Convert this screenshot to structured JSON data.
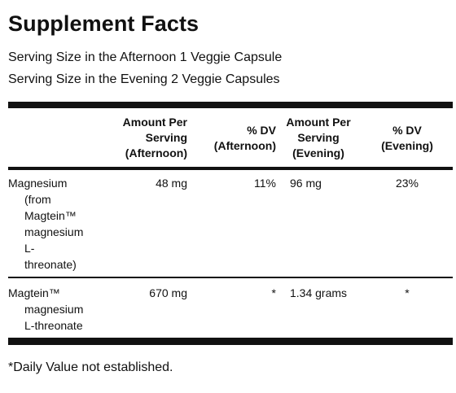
{
  "title": "Supplement Facts",
  "serving": {
    "afternoon": "Serving Size in the Afternoon 1 Veggie Capsule",
    "evening": "Serving Size in the Evening 2 Veggie Capsules"
  },
  "headers": {
    "amount_afternoon": [
      "Amount Per",
      "Serving",
      "(Afternoon)"
    ],
    "dv_afternoon": [
      "% DV",
      "(Afternoon)"
    ],
    "amount_evening": [
      "Amount Per",
      "Serving",
      "(Evening)"
    ],
    "dv_evening": [
      "% DV",
      "(Evening)"
    ]
  },
  "rows": [
    {
      "name_lines": [
        "Magnesium",
        "(from",
        "Magtein™",
        "magnesium",
        "L-",
        "threonate)"
      ],
      "amount_afternoon": "48 mg",
      "dv_afternoon": "11%",
      "amount_evening": "96 mg",
      "dv_evening": "23%"
    },
    {
      "name_lines": [
        "Magtein™",
        "magnesium",
        "L-threonate"
      ],
      "amount_afternoon": "670 mg",
      "dv_afternoon": "*",
      "amount_evening": "1.34 grams",
      "dv_evening": "*"
    }
  ],
  "footnote": "*Daily Value not established."
}
